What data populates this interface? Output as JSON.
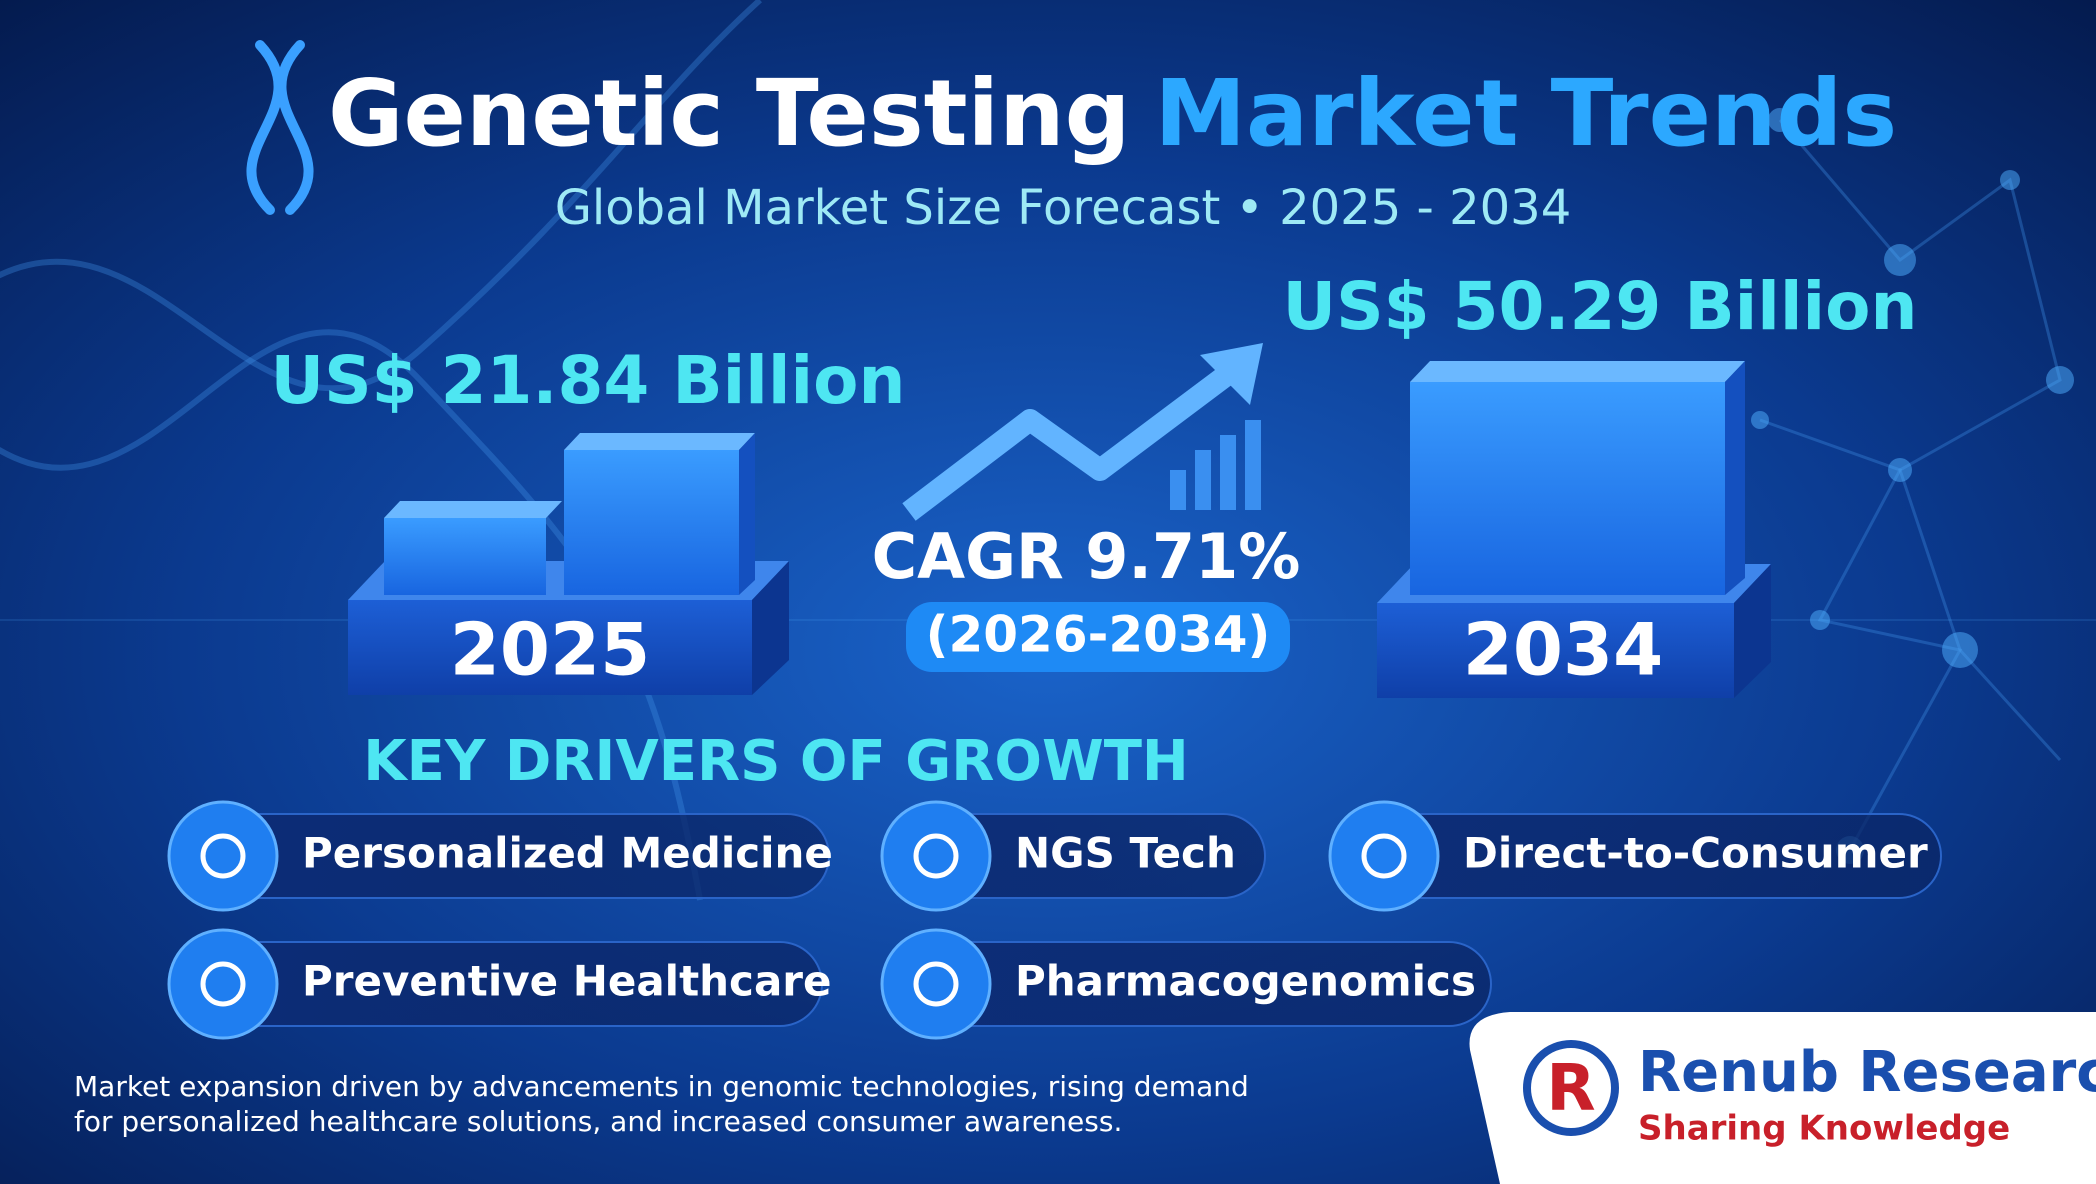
{
  "header": {
    "title_part1": "Genetic Testing",
    "title_part2": "Market Trends",
    "subtitle": "Global Market Size Forecast • 2025 - 2034"
  },
  "markets": [
    {
      "value_label": "US$ 21.84 Billion",
      "year": "2025"
    },
    {
      "value_label": "US$ 50.29 Billion",
      "year": "2034"
    }
  ],
  "cagr": {
    "label": "CAGR 9.71%",
    "period": "(2026-2034)"
  },
  "drivers": {
    "title": "KEY DRIVERS OF GROWTH",
    "items": [
      "Personalized Medicine",
      "NGS Tech",
      "Direct-to-Consumer",
      "Preventive Healthcare",
      "Pharmacogenomics"
    ]
  },
  "footnote": [
    "Market expansion driven by advancements in genomic technologies, rising demand",
    "for personalized healthcare solutions, and increased consumer awareness."
  ],
  "brand": {
    "name": "Renub Research",
    "tagline": "Sharing Knowledge"
  }
}
